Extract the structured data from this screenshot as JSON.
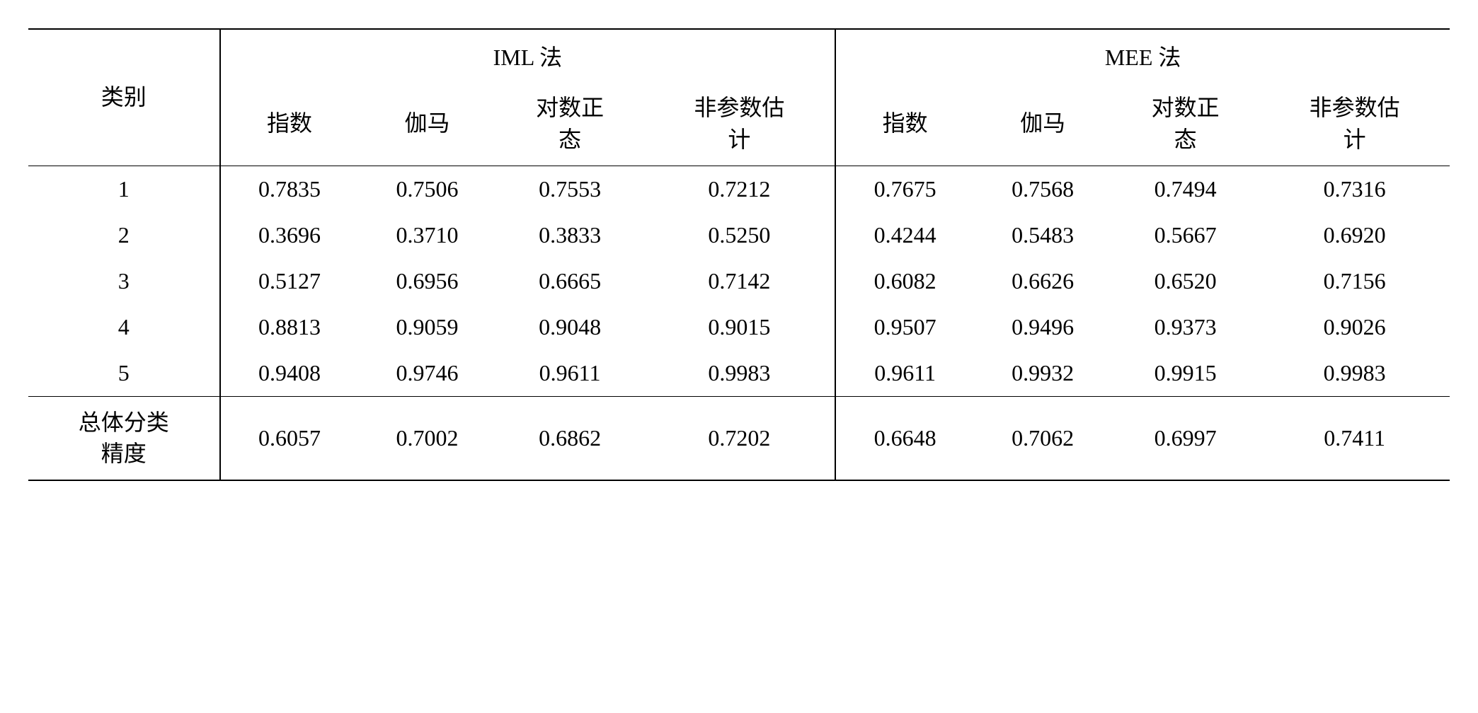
{
  "table": {
    "type": "table",
    "background_color": "#ffffff",
    "text_color": "#000000",
    "border_color": "#000000",
    "font_size": 32,
    "header": {
      "row_label": "类别",
      "groups": [
        {
          "label": "IML 法",
          "sub_columns": [
            "指数",
            "伽马",
            "对数正态",
            "非参数估计"
          ]
        },
        {
          "label": "MEE 法",
          "sub_columns": [
            "指数",
            "伽马",
            "对数正态",
            "非参数估计"
          ]
        }
      ]
    },
    "rows": [
      {
        "label": "1",
        "values": [
          "0.7835",
          "0.7506",
          "0.7553",
          "0.7212",
          "0.7675",
          "0.7568",
          "0.7494",
          "0.7316"
        ]
      },
      {
        "label": "2",
        "values": [
          "0.3696",
          "0.3710",
          "0.3833",
          "0.5250",
          "0.4244",
          "0.5483",
          "0.5667",
          "0.6920"
        ]
      },
      {
        "label": "3",
        "values": [
          "0.5127",
          "0.6956",
          "0.6665",
          "0.7142",
          "0.6082",
          "0.6626",
          "0.6520",
          "0.7156"
        ]
      },
      {
        "label": "4",
        "values": [
          "0.8813",
          "0.9059",
          "0.9048",
          "0.9015",
          "0.9507",
          "0.9496",
          "0.9373",
          "0.9026"
        ]
      },
      {
        "label": "5",
        "values": [
          "0.9408",
          "0.9746",
          "0.9611",
          "0.9983",
          "0.9611",
          "0.9932",
          "0.9915",
          "0.9983"
        ]
      }
    ],
    "footer": {
      "label": "总体分类精度",
      "values": [
        "0.6057",
        "0.7002",
        "0.6862",
        "0.7202",
        "0.6648",
        "0.7062",
        "0.6997",
        "0.7411"
      ]
    },
    "sub_labels": {
      "col1": "指数",
      "col2": "伽马",
      "col3_line1": "对数正",
      "col3_line2": "态",
      "col4_line1": "非参数估",
      "col4_line2": "计"
    },
    "footer_label_line1": "总体分类",
    "footer_label_line2": "精度"
  }
}
